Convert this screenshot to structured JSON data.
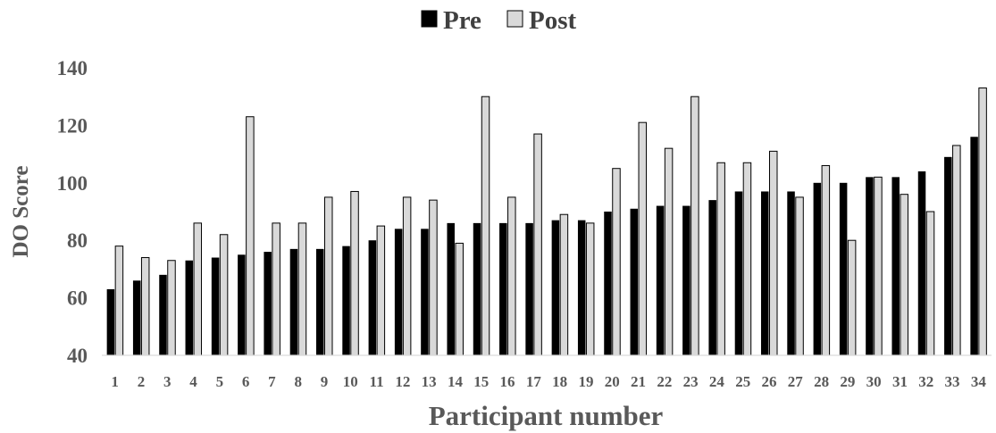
{
  "chart_data": {
    "type": "bar",
    "title": "",
    "xlabel": "Participant number",
    "ylabel": "DO Score",
    "ylim": [
      40,
      140
    ],
    "yticks": [
      40,
      60,
      80,
      100,
      120,
      140
    ],
    "grid": false,
    "legend_position": "top-center",
    "categories": [
      "1",
      "2",
      "3",
      "4",
      "5",
      "6",
      "7",
      "8",
      "9",
      "10",
      "11",
      "12",
      "13",
      "14",
      "15",
      "16",
      "17",
      "18",
      "19",
      "20",
      "21",
      "22",
      "23",
      "24",
      "25",
      "26",
      "27",
      "28",
      "29",
      "30",
      "31",
      "32",
      "33",
      "34"
    ],
    "series": [
      {
        "name": "Pre",
        "color": "#000000",
        "values": [
          63,
          66,
          68,
          73,
          74,
          75,
          76,
          77,
          77,
          78,
          80,
          84,
          84,
          86,
          86,
          86,
          86,
          87,
          87,
          90,
          91,
          92,
          92,
          94,
          97,
          97,
          97,
          100,
          100,
          102,
          102,
          104,
          109,
          116
        ]
      },
      {
        "name": "Post",
        "color": "#d9d9d9",
        "values": [
          78,
          74,
          73,
          86,
          82,
          123,
          86,
          86,
          95,
          97,
          85,
          95,
          94,
          79,
          130,
          95,
          117,
          89,
          86,
          105,
          121,
          112,
          130,
          107,
          107,
          111,
          95,
          106,
          80,
          102,
          96,
          90,
          113,
          133
        ]
      }
    ]
  }
}
